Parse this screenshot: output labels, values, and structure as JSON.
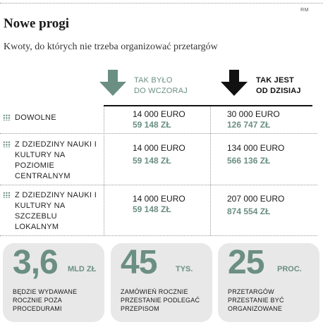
{
  "credit": "RM",
  "title": "Nowe progi",
  "subtitle": "Kwoty, do których nie trzeba organizować przetargów",
  "columns": {
    "was": {
      "line1": "Tak było",
      "line2": "do wczoraj",
      "color": "#6b8f82"
    },
    "now": {
      "line1": "Tak jest",
      "line2": "od dzisiaj",
      "color": "#111111"
    }
  },
  "rows": [
    {
      "label": "Dowolne",
      "was_eur": "14 000 EURO",
      "was_pln": "59 148 ZŁ",
      "now_eur": "30 000 EURO",
      "now_pln": "126 747 ZŁ"
    },
    {
      "label": "Z dziedziny nauki i kultury na poziomie centralnym",
      "was_eur": "14 000 EURO",
      "was_pln": "59 148 ZŁ",
      "now_eur": "134 000 EURO",
      "now_pln": "566 136 ZŁ"
    },
    {
      "label": "Z dziedziny nauki i kultury na szczeblu lokalnym",
      "was_eur": "14 000 EURO",
      "was_pln": "59 148 ZŁ",
      "now_eur": "207 000 EURO",
      "now_pln": "874 554 ZŁ"
    }
  ],
  "cards": [
    {
      "value": "3,6",
      "unit": "mld zł",
      "description": "Będzie wydawane rocznie poza procedurami"
    },
    {
      "value": "45",
      "unit": "tys.",
      "description": "Zamówień rocznie przestanie podlegać przepisom"
    },
    {
      "value": "25",
      "unit": "proc.",
      "description": "Przetargów przestanie być organizowane"
    }
  ],
  "accent_color": "#6b8f82"
}
